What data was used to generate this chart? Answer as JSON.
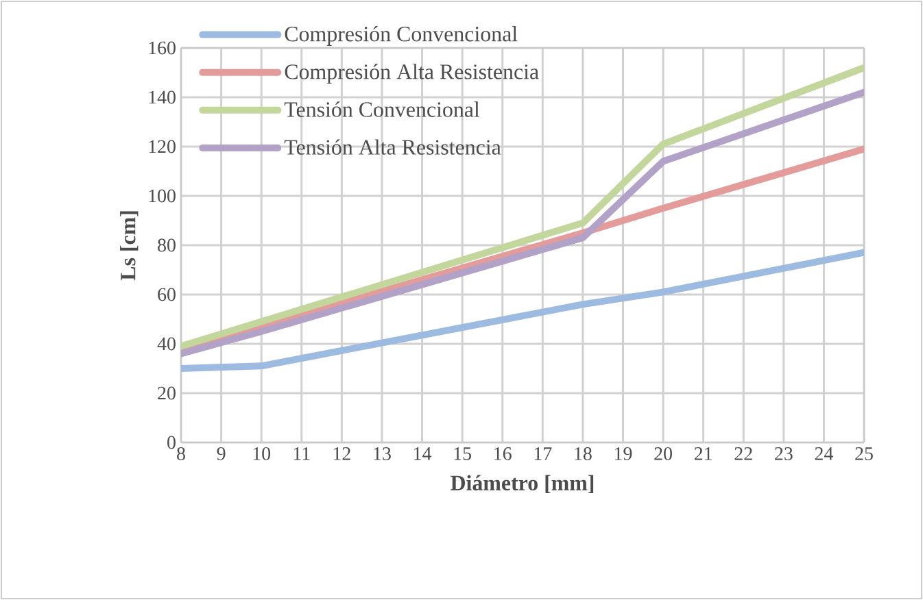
{
  "chart_data": {
    "type": "line",
    "xlabel": "Diámetro [mm]",
    "ylabel": "Ls [cm]",
    "x": [
      8,
      10,
      18,
      20,
      25
    ],
    "series": [
      {
        "name": "Compresión Convencional",
        "color": "#9dbbe0",
        "values": [
          30,
          31,
          56,
          61,
          77
        ]
      },
      {
        "name": "Compresión Alta Resistencia",
        "color": "#e39c9a",
        "values": [
          37,
          47,
          85,
          95,
          119
        ]
      },
      {
        "name": "Tensión Convencional",
        "color": "#c3d69b",
        "values": [
          39,
          49,
          89,
          121,
          152
        ]
      },
      {
        "name": "Tensión Alta Resistencia",
        "color": "#b3a2c7",
        "values": [
          36,
          45,
          83,
          114,
          142
        ]
      }
    ],
    "xlim": [
      8,
      25
    ],
    "xticks": [
      8,
      9,
      10,
      11,
      12,
      13,
      14,
      15,
      16,
      17,
      18,
      19,
      20,
      21,
      22,
      23,
      24,
      25
    ],
    "ylim": [
      0,
      160
    ],
    "yticks": [
      0,
      20,
      40,
      60,
      80,
      100,
      120,
      140,
      160
    ],
    "grid": true,
    "legend": "top left",
    "marker": "none",
    "line_style": "solid"
  }
}
